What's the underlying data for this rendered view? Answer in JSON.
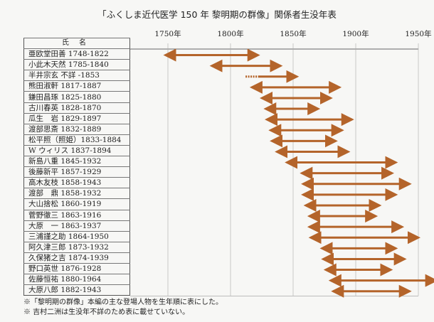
{
  "chart_data": {
    "type": "timeline",
    "title": "「ふくしま近代医学 150 年 黎明期の群像」関係者生没年表",
    "column_header": "氏名",
    "xlim": [
      1750,
      1950
    ],
    "ticks": [
      1750,
      1800,
      1850,
      1900,
      1950
    ],
    "tick_labels": [
      "1750年",
      "1800年",
      "1850年",
      "1900年",
      "1950年"
    ],
    "bar_color": "#b4642a",
    "people": [
      {
        "label": "亜欧堂田善  1748-1822",
        "birth": 1748,
        "death": 1822
      },
      {
        "label": "小此木天然  1785-1840",
        "birth": 1785,
        "death": 1840
      },
      {
        "label": "半井宗玄  不詳 -1853",
        "birth": null,
        "death": 1853
      },
      {
        "label": "熊田淑軒  1817-1887",
        "birth": 1817,
        "death": 1887
      },
      {
        "label": "鎌田昌琢  1825-1880",
        "birth": 1825,
        "death": 1880
      },
      {
        "label": "古川春英  1828-1870",
        "birth": 1828,
        "death": 1870
      },
      {
        "label": "瓜生　岩  1829-1897",
        "birth": 1829,
        "death": 1897
      },
      {
        "label": "渡部思斎  1832-1889",
        "birth": 1832,
        "death": 1889
      },
      {
        "label": "松平照（照姫）1833-1884",
        "birth": 1833,
        "death": 1884
      },
      {
        "label": "W ウィリス  1837-1894",
        "birth": 1837,
        "death": 1894
      },
      {
        "label": "新島八重  1845-1932",
        "birth": 1845,
        "death": 1932
      },
      {
        "label": "後藤新平  1857-1929",
        "birth": 1857,
        "death": 1929
      },
      {
        "label": "高木友枝  1858-1943",
        "birth": 1858,
        "death": 1943
      },
      {
        "label": "渡部　鼎  1858-1932",
        "birth": 1858,
        "death": 1932
      },
      {
        "label": "大山捨松  1860-1919",
        "birth": 1860,
        "death": 1919
      },
      {
        "label": "菅野徹三  1863-1916",
        "birth": 1863,
        "death": 1916
      },
      {
        "label": "大原　一  1863-1937",
        "birth": 1863,
        "death": 1937
      },
      {
        "label": "三浦謹之助  1864-1950",
        "birth": 1864,
        "death": 1950
      },
      {
        "label": "阿久津三郎  1873-1932",
        "birth": 1873,
        "death": 1932
      },
      {
        "label": "久保猪之吉  1874-1939",
        "birth": 1874,
        "death": 1939
      },
      {
        "label": "野口英世  1876-1928",
        "birth": 1876,
        "death": 1928
      },
      {
        "label": "佐藤恒祐  1880-1964",
        "birth": 1880,
        "death": 1964
      },
      {
        "label": "大原八郎  1882-1943",
        "birth": 1882,
        "death": 1943
      }
    ]
  },
  "notes": [
    "※「黎明期の群像」本編の主な登場人物を生年順に表にした。",
    "※  吉村二洲は生没年不詳のため表に載せていない。"
  ]
}
